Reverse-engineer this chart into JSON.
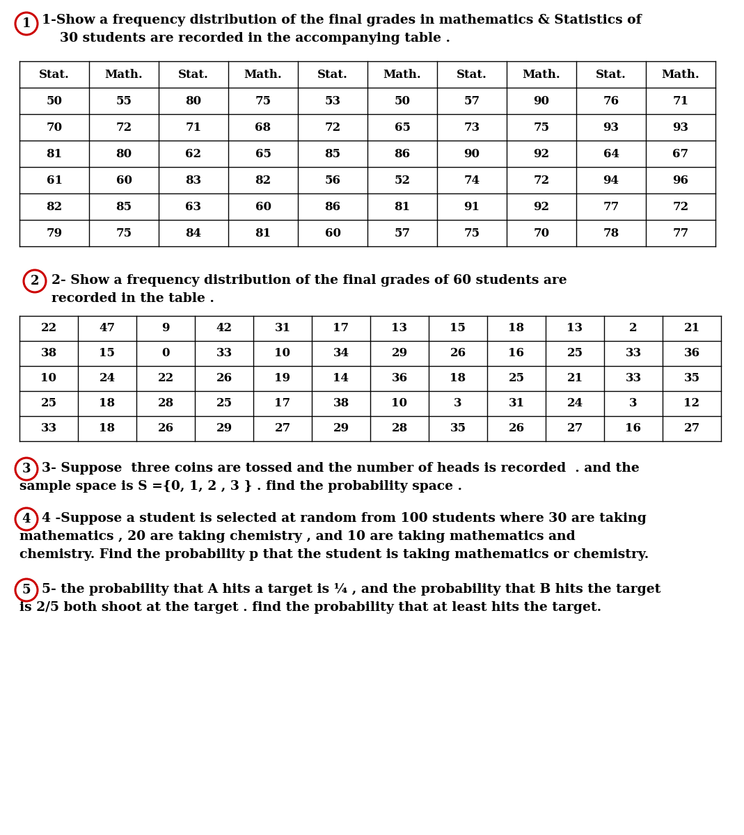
{
  "bg_color": "#ffffff",
  "title1_line1": "1-Show a frequency distribution of the final grades in mathematics & Statistics of",
  "title1_line2": "    30 students are recorded in the accompanying table .",
  "table1_headers": [
    "Stat.",
    "Math.",
    "Stat.",
    "Math.",
    "Stat.",
    "Math.",
    "Stat.",
    "Math.",
    "Stat.",
    "Math."
  ],
  "table1_data": [
    [
      50,
      55,
      80,
      75,
      53,
      50,
      57,
      90,
      76,
      71
    ],
    [
      70,
      72,
      71,
      68,
      72,
      65,
      73,
      75,
      93,
      93
    ],
    [
      81,
      80,
      62,
      65,
      85,
      86,
      90,
      92,
      64,
      67
    ],
    [
      61,
      60,
      83,
      82,
      56,
      52,
      74,
      72,
      94,
      96
    ],
    [
      82,
      85,
      63,
      60,
      86,
      81,
      91,
      92,
      77,
      72
    ],
    [
      79,
      75,
      84,
      81,
      60,
      57,
      75,
      70,
      78,
      77
    ]
  ],
  "title2_line1": "2- Show a frequency distribution of the final grades of 60 students are",
  "title2_line2": "recorded in the table .",
  "table2_data": [
    [
      22,
      47,
      9,
      42,
      31,
      17,
      13,
      15,
      18,
      13,
      2,
      21
    ],
    [
      38,
      15,
      0,
      33,
      10,
      34,
      29,
      26,
      16,
      25,
      33,
      36
    ],
    [
      10,
      24,
      22,
      26,
      19,
      14,
      36,
      18,
      25,
      21,
      33,
      35
    ],
    [
      25,
      18,
      28,
      25,
      17,
      38,
      10,
      3,
      31,
      24,
      3,
      12
    ],
    [
      33,
      18,
      26,
      29,
      27,
      29,
      28,
      35,
      26,
      27,
      16,
      27
    ]
  ],
  "q3_line1": "3- Suppose  three coins are tossed and the number of heads is recorded  . and the",
  "q3_line2": "sample space is S ={0, 1, 2 , 3 } . find the probability space .",
  "q4_line1": "4 -Suppose a student is selected at random from 100 students where 30 are taking",
  "q4_line2": "mathematics , 20 are taking chemistry , and 10 are taking mathematics and",
  "q4_line3": "chemistry. Find the probability p that the student is taking mathematics or chemistry.",
  "q5_line1": "5- the probability that A hits a target is ¼ , and the probability that B hits the target",
  "q5_line2": "is 2/5 both shoot at the target . find the probability that at least hits the target.",
  "circle_color": "#cc0000",
  "text_color": "#000000"
}
